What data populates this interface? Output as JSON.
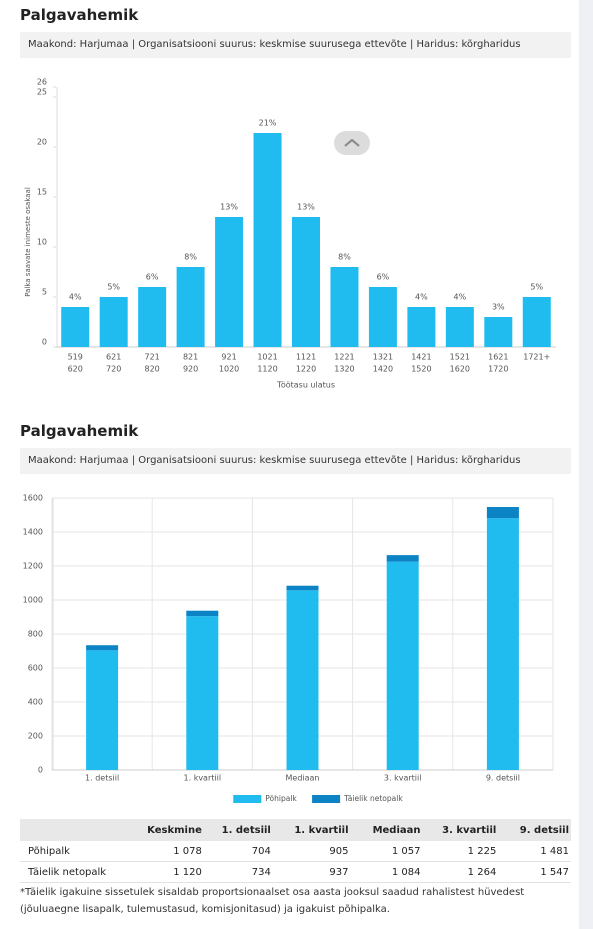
{
  "chart_data": [
    {
      "type": "bar",
      "title": "Palgavahemik",
      "subtitle": "Maakond: Harjumaa | Organisatsiooni suurus: keskmise suurusega ettevõte | Haridus: kõrgharidus",
      "categories": [
        [
          "519",
          "620"
        ],
        [
          "621",
          "720"
        ],
        [
          "721",
          "820"
        ],
        [
          "821",
          "920"
        ],
        [
          "921",
          "1020"
        ],
        [
          "1021",
          "1120"
        ],
        [
          "1121",
          "1220"
        ],
        [
          "1221",
          "1320"
        ],
        [
          "1321",
          "1420"
        ],
        [
          "1421",
          "1520"
        ],
        [
          "1521",
          "1620"
        ],
        [
          "1621",
          "1720"
        ],
        [
          "1721+"
        ]
      ],
      "values": [
        4,
        5,
        6,
        8,
        13,
        21.4,
        13,
        8,
        6,
        4,
        4,
        3,
        5
      ],
      "value_labels": [
        "4%",
        "5%",
        "6%",
        "8%",
        "13%",
        "21%",
        "13%",
        "8%",
        "6%",
        "4%",
        "4%",
        "3%",
        "5%"
      ],
      "color": "#20bcef",
      "ylim": [
        0,
        26
      ],
      "yticks": [
        0,
        5,
        10,
        15,
        20,
        25,
        26
      ],
      "ylabel": "Palka saavate inimeste osakaal",
      "xlabel": "Töötasu ulatus",
      "grid": false
    },
    {
      "type": "bar",
      "stacked": true,
      "title": "Palgavahemik",
      "subtitle": "Maakond: Harjumaa | Organisatsiooni suurus: keskmise suurusega ettevõte | Haridus: kõrgharidus",
      "categories": [
        "1. detsiil",
        "1. kvartiil",
        "Mediaan",
        "3. kvartiil",
        "9. detsiil"
      ],
      "series": [
        {
          "name": "Põhipalk",
          "color": "#20bcef",
          "values": [
            704,
            905,
            1057,
            1225,
            1481
          ]
        },
        {
          "name": "Täielik netopalk",
          "color": "#0b83c5",
          "values": [
            30,
            32,
            27,
            39,
            66
          ]
        }
      ],
      "ylim": [
        0,
        1600
      ],
      "yticks": [
        0,
        200,
        400,
        600,
        800,
        1000,
        1200,
        1400,
        1600
      ],
      "grid": true,
      "legend": "bottom"
    }
  ],
  "table": {
    "header": [
      "Keskmine",
      "1. detsiil",
      "1. kvartiil",
      "Mediaan",
      "3. kvartiil",
      "9. detsiil"
    ],
    "rows": [
      [
        "Põhipalk",
        "1 078",
        "704",
        "905",
        "1 057",
        "1 225",
        "1 481"
      ],
      [
        "Täielik netopalk",
        "1 120",
        "734",
        "937",
        "1 084",
        "1 264",
        "1 547"
      ]
    ]
  },
  "footnote": "*Täielik igakuine sissetulek sisaldab proportsionaalset osa aasta jooksul saadud rahalistest hüvedest (jõuluaegne lisapalk, tulemustasud, komisjonitasud) ja igakuist põhipalka."
}
